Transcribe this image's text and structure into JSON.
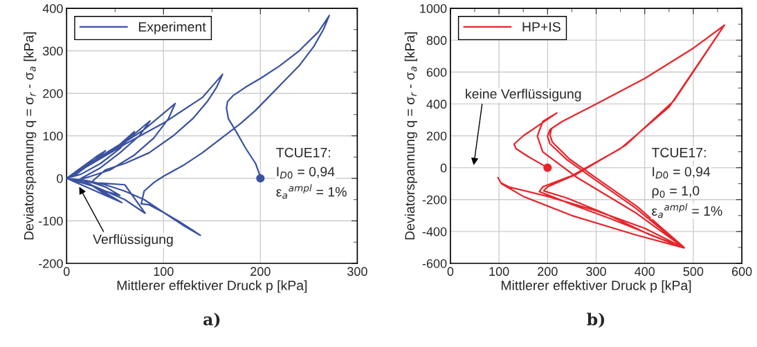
{
  "chart_data": [
    {
      "type": "line",
      "title": "a)",
      "xlabel": "Mittlerer effektiver Druck p [kPa]",
      "ylabel": "Deviatorspannung q = σ$_{r}$ - σ$_{a}$ [kPa]",
      "xlim": [
        0,
        300
      ],
      "xticks": [
        0,
        100,
        200,
        300
      ],
      "ylim": [
        -200,
        400
      ],
      "yticks": [
        -200,
        -100,
        0,
        100,
        200,
        300,
        400
      ],
      "grid": true,
      "legend": "top left",
      "series": [
        {
          "name": "Experiment",
          "color": "#3a52a0",
          "x": [
            200,
            199,
            195,
            185,
            175,
            167,
            165,
            166,
            172,
            185,
            200,
            220,
            240,
            260,
            271,
            265,
            255,
            240,
            225,
            210,
            195,
            180,
            160,
            140,
            120,
            100,
            90,
            80,
            78,
            77,
            85,
            100,
            115,
            130,
            138,
            120,
            100,
            80,
            60,
            40,
            20,
            0,
            30,
            60,
            100,
            140,
            161,
            155,
            145,
            130,
            110,
            85,
            60,
            40,
            25,
            40,
            60,
            81,
            60,
            30,
            0,
            40,
            80,
            112,
            105,
            90,
            70,
            45,
            25,
            10,
            30,
            57,
            30,
            0,
            35,
            65,
            86,
            75,
            55,
            35,
            15,
            25,
            45,
            20,
            0,
            30,
            55,
            70,
            55,
            35,
            15,
            0,
            20,
            40,
            55,
            40,
            20,
            0,
            15,
            30,
            40,
            25,
            10,
            0
          ],
          "values": [
            0,
            10,
            35,
            70,
            110,
            140,
            165,
            180,
            195,
            215,
            235,
            265,
            300,
            345,
            383,
            350,
            310,
            265,
            230,
            195,
            160,
            130,
            95,
            60,
            30,
            5,
            -10,
            -30,
            -50,
            -60,
            -62,
            -80,
            -100,
            -122,
            -134,
            -110,
            -80,
            -50,
            -30,
            -15,
            -5,
            0,
            40,
            80,
            130,
            190,
            245,
            215,
            180,
            140,
            100,
            60,
            35,
            20,
            -10,
            -12,
            -15,
            -82,
            -50,
            -20,
            0,
            55,
            115,
            176,
            140,
            95,
            55,
            20,
            5,
            -5,
            -20,
            -57,
            -30,
            0,
            50,
            95,
            135,
            100,
            60,
            25,
            0,
            -15,
            -45,
            -20,
            0,
            45,
            80,
            110,
            70,
            35,
            10,
            0,
            -10,
            -30,
            -40,
            -20,
            -5,
            0,
            25,
            50,
            65,
            35,
            10,
            0
          ]
        },
        {
          "type": "scatter",
          "color": "#3a52a0",
          "x": [
            200
          ],
          "values": [
            0
          ]
        }
      ],
      "annotations": [
        {
          "text": "Verflüssigung",
          "x": 13,
          "y": -20
        },
        "TCUE17:",
        "I$_{D0}$ = 0,94",
        "ε$_{a}$$^{ampl}$ = 1%"
      ]
    },
    {
      "type": "line",
      "title": "b)",
      "xlabel": "Mittlerer effektiver Druck p [kPa]",
      "ylabel": "Deviatorspannung q = σ$_{r}$ - σ$_{a}$ [kPa]",
      "xlim": [
        0,
        600
      ],
      "xticks": [
        0,
        100,
        200,
        300,
        400,
        500,
        600
      ],
      "ylim": [
        -600,
        1000
      ],
      "yticks": [
        -600,
        -400,
        -200,
        0,
        200,
        400,
        600,
        800,
        1000
      ],
      "grid": true,
      "legend": "top left",
      "series": [
        {
          "name": "HP+IS",
          "color": "#e8242a",
          "x": [
            200,
            160,
            135,
            131,
            150,
            219,
            190,
            179,
            190,
            260,
            380,
            481,
            380,
            250,
            150,
            105,
            98,
            104,
            120,
            200,
            300,
            400,
            481,
            420,
            330,
            250,
            200,
            183,
            190,
            250,
            350,
            450,
            564,
            500,
            400,
            300,
            230,
            205,
            200,
            205,
            240,
            300,
            380,
            481,
            410,
            320,
            240,
            192,
            200,
            260,
            360,
            460,
            564,
            500,
            400,
            300,
            230,
            208,
            205,
            210,
            245,
            305,
            385,
            481
          ],
          "values": [
            0,
            70,
            120,
            148,
            200,
            344,
            290,
            198,
            100,
            -60,
            -280,
            -503,
            -420,
            -300,
            -180,
            -100,
            -62,
            -95,
            -120,
            -180,
            -270,
            -380,
            -503,
            -430,
            -320,
            -230,
            -170,
            -150,
            -120,
            -50,
            120,
            380,
            894,
            750,
            560,
            400,
            290,
            240,
            198,
            150,
            50,
            -80,
            -250,
            -503,
            -420,
            -290,
            -190,
            -145,
            -120,
            -40,
            140,
            420,
            894,
            750,
            560,
            400,
            290,
            245,
            205,
            160,
            55,
            -75,
            -245,
            -500
          ]
        },
        {
          "type": "scatter",
          "color": "#e8242a",
          "x": [
            200
          ],
          "values": [
            0
          ]
        }
      ],
      "annotations": [
        "keine Verflüssigung",
        "TCUE17:",
        "I$_{D0}$ = 0,94",
        "ρ$_{0}$ = 1,0",
        "ε$_{a}$$^{ampl}$ = 1%"
      ]
    }
  ]
}
